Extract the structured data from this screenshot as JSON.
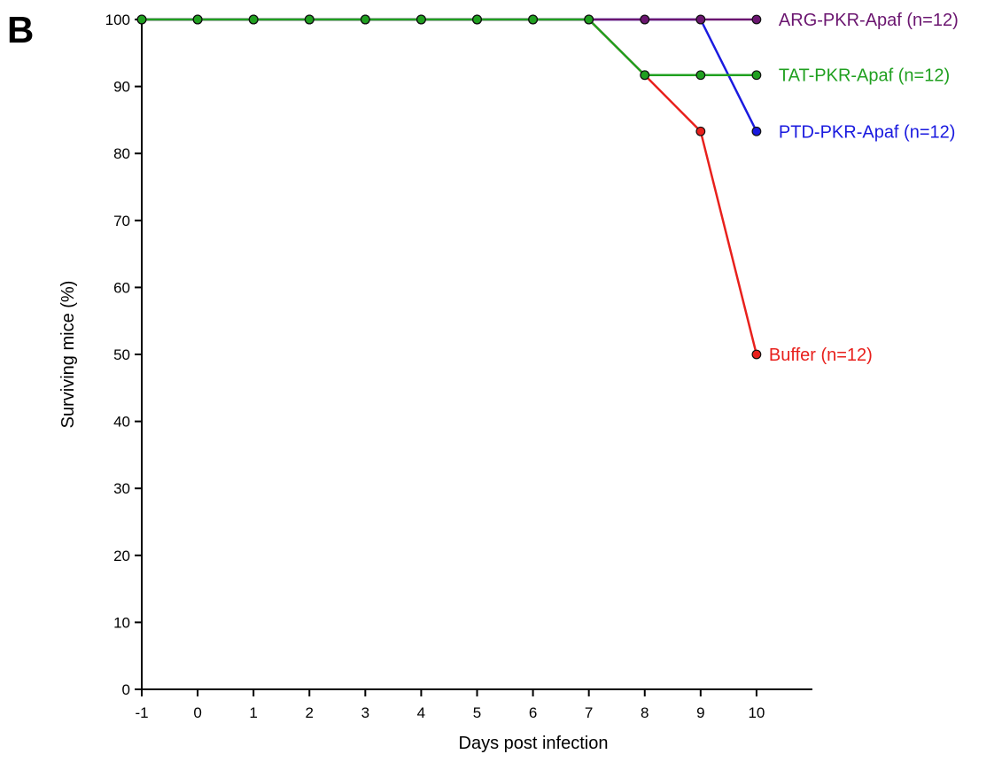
{
  "panel_label": "B",
  "chart_data": {
    "type": "line",
    "xlabel": "Days post infection",
    "ylabel": "Surviving mice (%)",
    "x": [
      -1,
      0,
      1,
      2,
      3,
      4,
      5,
      6,
      7,
      8,
      9,
      10
    ],
    "xlim": [
      -1,
      11
    ],
    "ylim": [
      0,
      100
    ],
    "xticks": [
      "-1",
      "0",
      "1",
      "2",
      "3",
      "4",
      "5",
      "6",
      "7",
      "8",
      "9",
      "10"
    ],
    "yticks": [
      "0",
      "10",
      "20",
      "30",
      "40",
      "50",
      "60",
      "70",
      "80",
      "90",
      "100"
    ],
    "grid": false,
    "legend": "inline labels at right end of each line",
    "series": [
      {
        "name": "Buffer (n=12)",
        "color": "#e8201c",
        "x": [
          -1,
          0,
          1,
          2,
          3,
          4,
          5,
          6,
          7,
          8,
          9,
          10
        ],
        "values": [
          100,
          100,
          100,
          100,
          100,
          100,
          100,
          100,
          100,
          91.7,
          83.3,
          50
        ]
      },
      {
        "name": "PTD-PKR-Apaf (n=12)",
        "color": "#1a1adf",
        "x": [
          -1,
          0,
          1,
          2,
          3,
          4,
          5,
          6,
          7,
          8,
          9,
          10
        ],
        "values": [
          100,
          100,
          100,
          100,
          100,
          100,
          100,
          100,
          100,
          100,
          100,
          83.3
        ]
      },
      {
        "name": "ARG-PKR-Apaf (n=12)",
        "color": "#6b1670",
        "x": [
          -1,
          0,
          1,
          2,
          3,
          4,
          5,
          6,
          7,
          8,
          9,
          10
        ],
        "values": [
          100,
          100,
          100,
          100,
          100,
          100,
          100,
          100,
          100,
          100,
          100,
          100
        ]
      },
      {
        "name": "TAT-PKR-Apaf (n=12)",
        "color": "#20a020",
        "x": [
          -1,
          0,
          1,
          2,
          3,
          4,
          5,
          6,
          7,
          8,
          9,
          10
        ],
        "values": [
          100,
          100,
          100,
          100,
          100,
          100,
          100,
          100,
          100,
          91.7,
          91.7,
          91.7
        ]
      }
    ]
  }
}
